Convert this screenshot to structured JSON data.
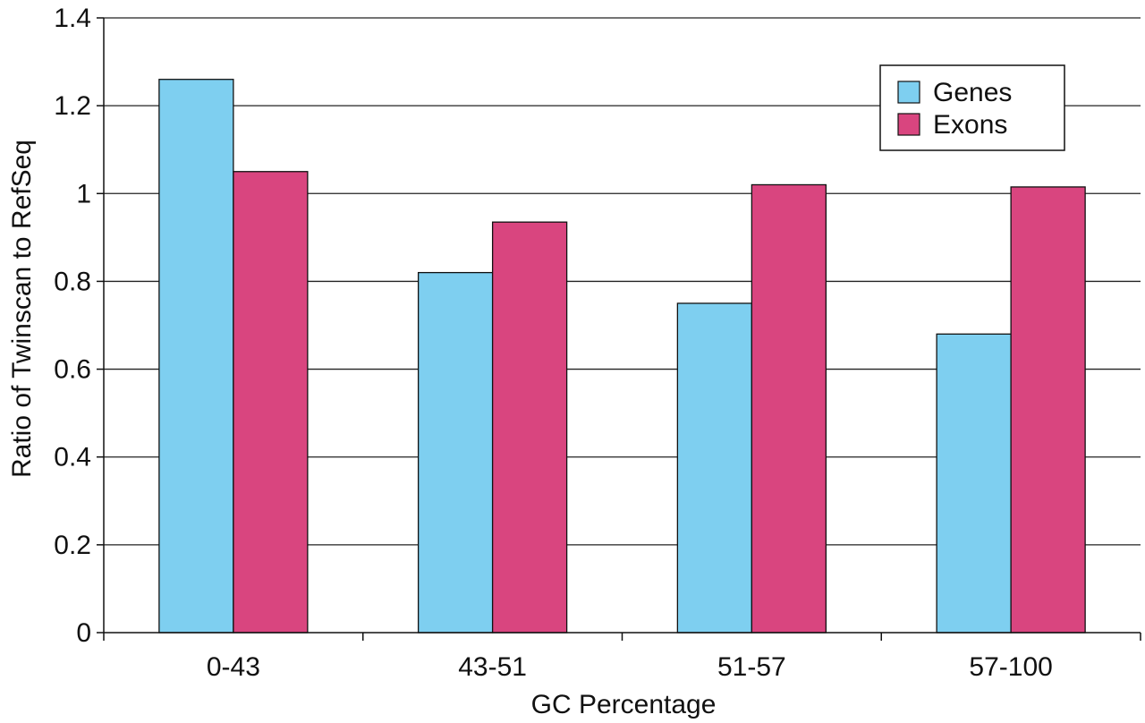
{
  "chart_data": {
    "type": "bar",
    "categories": [
      "0-43",
      "43-51",
      "51-57",
      "57-100"
    ],
    "series": [
      {
        "name": "Genes",
        "values": [
          1.26,
          0.82,
          0.75,
          0.68
        ],
        "color": "#7ecff0"
      },
      {
        "name": "Exons",
        "values": [
          1.05,
          0.935,
          1.02,
          1.015
        ],
        "color": "#d9457f"
      }
    ],
    "xlabel": "GC Percentage",
    "ylabel": "Ratio of Twinscan to RefSeq",
    "ylim": [
      0,
      1.4
    ],
    "yticks": [
      "0",
      "0.2",
      "0.4",
      "0.6",
      "0.8",
      "1",
      "1.2",
      "1.4"
    ],
    "grid": true,
    "legend_position": "top-right"
  }
}
